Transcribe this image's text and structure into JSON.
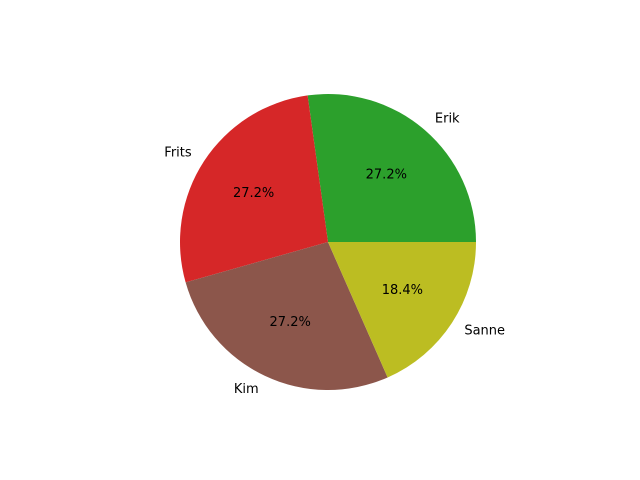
{
  "chart_data": {
    "type": "pie",
    "title": "",
    "start_angle_deg": 0,
    "direction": "counterclockwise",
    "slices": [
      {
        "label": "Erik",
        "value": 27.2,
        "pct_label": "27.2%",
        "color": "#2ca02c"
      },
      {
        "label": "Frits",
        "value": 27.2,
        "pct_label": "27.2%",
        "color": "#d62728"
      },
      {
        "label": "Kim",
        "value": 27.2,
        "pct_label": "27.2%",
        "color": "#8c564b"
      },
      {
        "label": "Sanne",
        "value": 18.4,
        "pct_label": "18.4%",
        "color": "#bcbd22"
      }
    ],
    "legend": false
  }
}
